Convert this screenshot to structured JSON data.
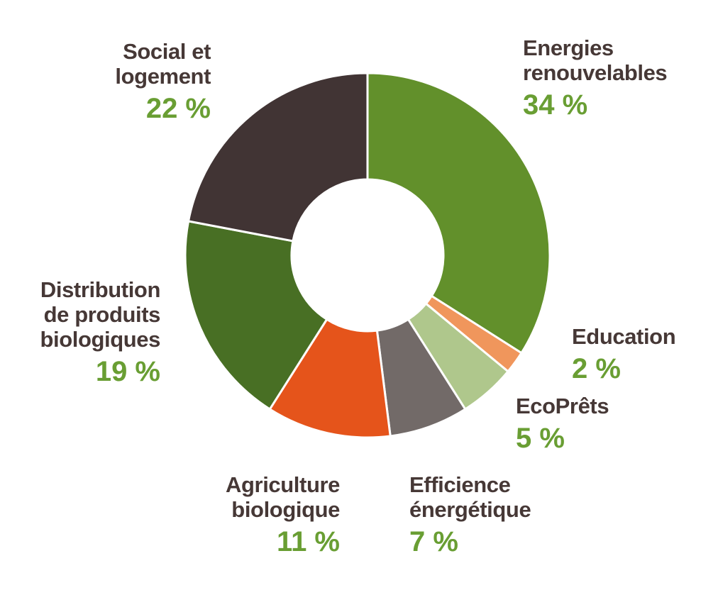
{
  "colors": {
    "background": "#ffffff",
    "label_text": "#463836",
    "percent_text": "#699e33",
    "slice_gap": "#ffffff"
  },
  "chart_data": {
    "type": "pie",
    "subtype": "donut",
    "title": "",
    "unit": "%",
    "start_angle_deg": 0,
    "direction": "clockwise",
    "legend_position": "around-slices",
    "slices": [
      {
        "label": "Energies renouvelables",
        "value": 34,
        "color": "#62902b",
        "display_label": "Energies\nrenouvelables",
        "display_value": "34 %"
      },
      {
        "label": "Education",
        "value": 2,
        "color": "#f0965c",
        "display_label": "Education",
        "display_value": "2 %"
      },
      {
        "label": "EcoPrêts",
        "value": 5,
        "color": "#afc78c",
        "display_label": "EcoPrêts",
        "display_value": "5 %"
      },
      {
        "label": "Efficience énergétique",
        "value": 7,
        "color": "#726a68",
        "display_label": "Efficience\nénergétique",
        "display_value": "7 %"
      },
      {
        "label": "Agriculture biologique",
        "value": 11,
        "color": "#e5541b",
        "display_label": "Agriculture\nbiologique",
        "display_value": "11 %"
      },
      {
        "label": "Distribution de produits biologiques",
        "value": 19,
        "color": "#486f24",
        "display_label": "Distribution\nde produits\nbiologiques",
        "display_value": "19 %"
      },
      {
        "label": "Social et logement",
        "value": 22,
        "color": "#413434",
        "display_label": "Social et\nlogement",
        "display_value": "22 %"
      }
    ]
  }
}
